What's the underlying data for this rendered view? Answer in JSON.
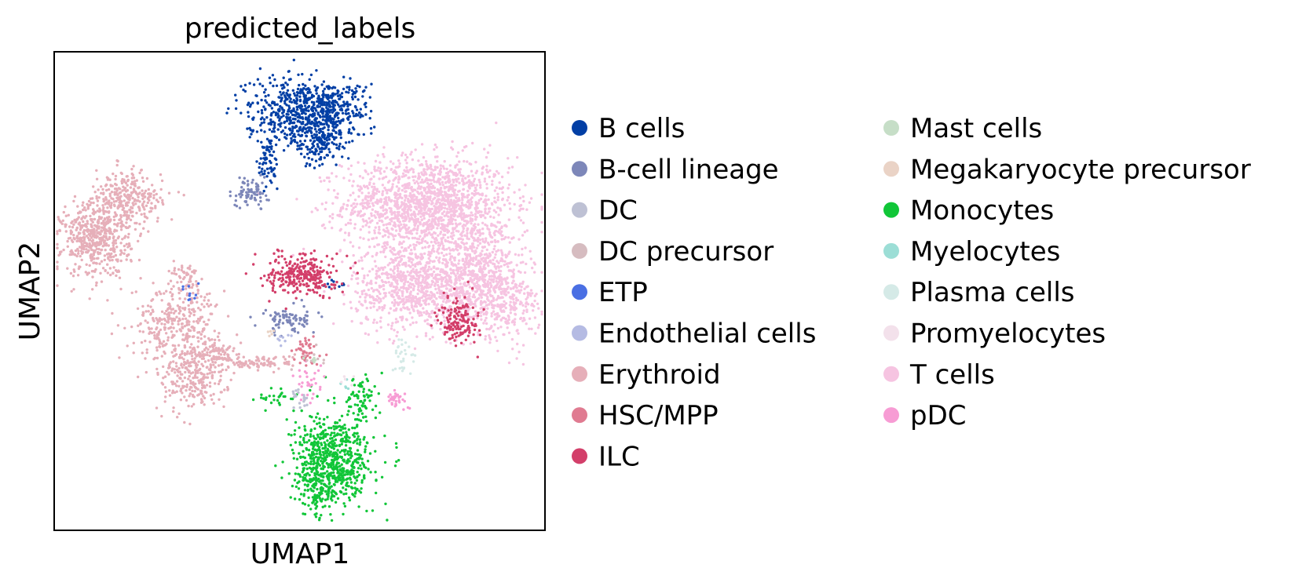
{
  "chart_data": {
    "type": "scatter",
    "title": "predicted_labels",
    "xlabel": "UMAP1",
    "ylabel": "UMAP2",
    "xlim": [
      0,
      100
    ],
    "ylim": [
      0,
      100
    ],
    "grid": false,
    "ticks_shown": false,
    "legend_placement": "right",
    "legend_columns": 2,
    "series": [
      {
        "name": "B cells",
        "color": "#023fa5",
        "clusters": [
          {
            "cx": 48,
            "cy": 88,
            "sx": 4.5,
            "sy": 3.5,
            "n": 380
          },
          {
            "cx": 56,
            "cy": 88,
            "sx": 4.0,
            "sy": 3.0,
            "n": 320
          },
          {
            "cx": 54,
            "cy": 81,
            "sx": 3.0,
            "sy": 2.5,
            "n": 160
          },
          {
            "cx": 43.5,
            "cy": 77,
            "sx": 1.0,
            "sy": 3.0,
            "n": 70
          },
          {
            "cx": 57,
            "cy": 52,
            "sx": 1.5,
            "sy": 1.0,
            "n": 10
          }
        ]
      },
      {
        "name": "B-cell lineage",
        "color": "#7d87b9",
        "clusters": [
          {
            "cx": 40,
            "cy": 70.5,
            "sx": 1.8,
            "sy": 1.5,
            "n": 80
          },
          {
            "cx": 48,
            "cy": 44,
            "sx": 3.0,
            "sy": 1.5,
            "n": 90
          }
        ]
      },
      {
        "name": "DC",
        "color": "#bec1d4",
        "clusters": [
          {
            "cx": 50,
            "cy": 28,
            "sx": 1.0,
            "sy": 1.2,
            "n": 20
          }
        ]
      },
      {
        "name": "DC precursor",
        "color": "#d6bcc0",
        "clusters": [
          {
            "cx": 53,
            "cy": 36,
            "sx": 1.5,
            "sy": 1.5,
            "n": 10
          }
        ]
      },
      {
        "name": "ETP",
        "color": "#4a6fe3",
        "clusters": [
          {
            "cx": 28,
            "cy": 50,
            "sx": 1.0,
            "sy": 1.0,
            "n": 10
          }
        ]
      },
      {
        "name": "Endothelial cells",
        "color": "#b5bbe3",
        "clusters": [
          {
            "cx": 47,
            "cy": 40,
            "sx": 1.0,
            "sy": 1.0,
            "n": 8
          }
        ]
      },
      {
        "name": "Erythroid",
        "color": "#e6afb9",
        "clusters": [
          {
            "cx": 8.5,
            "cy": 61,
            "sx": 3.5,
            "sy": 4.0,
            "n": 520
          },
          {
            "cx": 15,
            "cy": 69,
            "sx": 3.5,
            "sy": 3.0,
            "n": 300
          },
          {
            "cx": 25,
            "cy": 44,
            "sx": 4.5,
            "sy": 4.0,
            "n": 340
          },
          {
            "cx": 28,
            "cy": 32,
            "sx": 3.5,
            "sy": 3.5,
            "n": 260
          },
          {
            "cx": 33,
            "cy": 37,
            "sx": 2.5,
            "sy": 1.5,
            "n": 100
          },
          {
            "cx": 42,
            "cy": 35,
            "sx": 3.5,
            "sy": 0.8,
            "n": 90
          },
          {
            "cx": 27,
            "cy": 53,
            "sx": 1.5,
            "sy": 1.5,
            "n": 40
          }
        ]
      },
      {
        "name": "HSC/MPP",
        "color": "#e07b91",
        "clusters": [
          {
            "cx": 51.5,
            "cy": 37,
            "sx": 1.5,
            "sy": 1.5,
            "n": 45
          }
        ]
      },
      {
        "name": "ILC",
        "color": "#d33f6a",
        "clusters": [
          {
            "cx": 50.5,
            "cy": 53.5,
            "sx": 3.5,
            "sy": 2.2,
            "n": 280
          },
          {
            "cx": 82.5,
            "cy": 44,
            "sx": 2.0,
            "sy": 2.5,
            "n": 150
          }
        ]
      },
      {
        "name": "Mast cells",
        "color": "#c6dec7",
        "clusters": [
          {
            "cx": 52,
            "cy": 36,
            "sx": 0.8,
            "sy": 0.8,
            "n": 5
          }
        ]
      },
      {
        "name": "Megakaryocyte precursor",
        "color": "#ead3c6",
        "clusters": [
          {
            "cx": 44,
            "cy": 41,
            "sx": 0.8,
            "sy": 0.8,
            "n": 5
          }
        ]
      },
      {
        "name": "Monocytes",
        "color": "#11c638",
        "clusters": [
          {
            "cx": 57,
            "cy": 15,
            "sx": 4.0,
            "sy": 4.5,
            "n": 650
          },
          {
            "cx": 54,
            "cy": 8,
            "sx": 2.0,
            "sy": 2.5,
            "n": 120
          },
          {
            "cx": 62.5,
            "cy": 28,
            "sx": 1.5,
            "sy": 2.5,
            "n": 70
          },
          {
            "cx": 44.5,
            "cy": 27.5,
            "sx": 2.0,
            "sy": 1.0,
            "n": 25
          }
        ]
      },
      {
        "name": "Myelocytes",
        "color": "#9cded6",
        "clusters": [
          {
            "cx": 59,
            "cy": 30,
            "sx": 0.8,
            "sy": 0.8,
            "n": 5
          }
        ]
      },
      {
        "name": "Plasma cells",
        "color": "#d5eae7",
        "clusters": [
          {
            "cx": 71,
            "cy": 36,
            "sx": 1.5,
            "sy": 2.0,
            "n": 30
          }
        ]
      },
      {
        "name": "Promyelocytes",
        "color": "#f3e1eb",
        "clusters": [
          {
            "cx": 60,
            "cy": 31,
            "sx": 0.8,
            "sy": 0.8,
            "n": 5
          }
        ]
      },
      {
        "name": "T cells",
        "color": "#f6c4e1",
        "clusters": [
          {
            "cx": 76,
            "cy": 68,
            "sx": 8.5,
            "sy": 5.0,
            "n": 1600
          },
          {
            "cx": 73,
            "cy": 51,
            "sx": 6.0,
            "sy": 4.5,
            "n": 800
          },
          {
            "cx": 86,
            "cy": 53,
            "sx": 5.0,
            "sy": 5.0,
            "n": 700
          },
          {
            "cx": 92,
            "cy": 47,
            "sx": 3.5,
            "sy": 3.5,
            "n": 220
          }
        ]
      },
      {
        "name": "pDC",
        "color": "#f79cd4",
        "clusters": [
          {
            "cx": 70,
            "cy": 27.5,
            "sx": 1.0,
            "sy": 0.8,
            "n": 35
          },
          {
            "cx": 52,
            "cy": 31,
            "sx": 1.5,
            "sy": 2.5,
            "n": 30
          }
        ]
      }
    ]
  }
}
